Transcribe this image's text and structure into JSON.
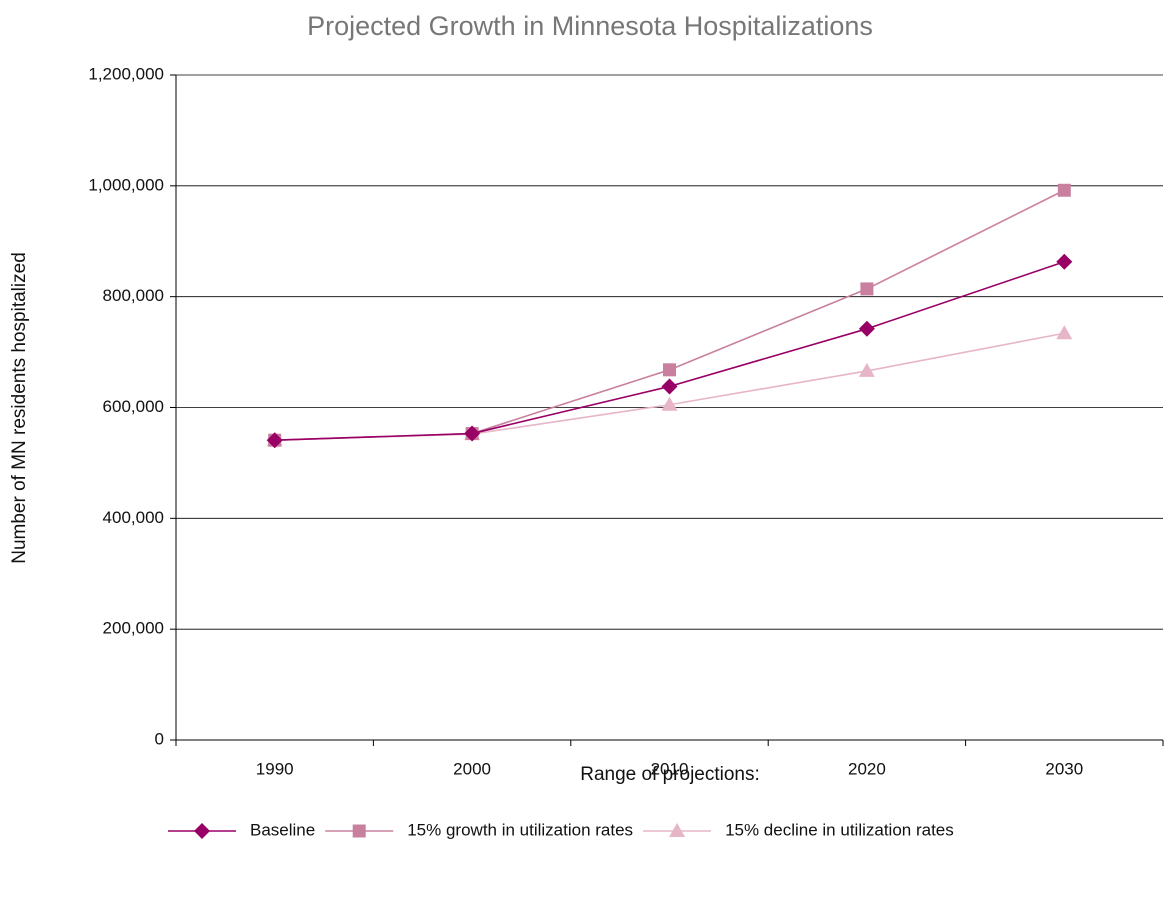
{
  "chart_data": {
    "type": "line",
    "title": "Projected Growth in Minnesota Hospitalizations",
    "x_label": "Range of projections:",
    "y_label": "Number of MN residents hospitalized",
    "categories": [
      "1990",
      "2000",
      "2010",
      "2020",
      "2030"
    ],
    "series": [
      {
        "name": "Baseline",
        "color": "#990066",
        "marker": "diamond",
        "values": [
          541000,
          553000,
          638000,
          742000,
          863000
        ]
      },
      {
        "name": "15% growth in utilization rates",
        "color": "#c9809f",
        "marker": "square",
        "values": [
          541000,
          553000,
          668000,
          814000,
          992000
        ]
      },
      {
        "name": "15% decline in utilization rates",
        "color": "#e6b5c8",
        "marker": "triangle",
        "values": [
          541000,
          552000,
          605000,
          666000,
          734000
        ]
      }
    ],
    "ylim": [
      0,
      1200000
    ],
    "yticks": [
      0,
      {
        "value": 200000,
        "label": "200,000"
      },
      {
        "value": 400000,
        "label": "400,000"
      },
      {
        "value": 600000,
        "label": "600,000"
      },
      {
        "value": 800000,
        "label": "800,000"
      },
      {
        "value": 1000000,
        "label": "1,000,000"
      },
      {
        "value": 1200000,
        "label": "1,200,000"
      }
    ],
    "grid": true,
    "legend": "bottom"
  }
}
